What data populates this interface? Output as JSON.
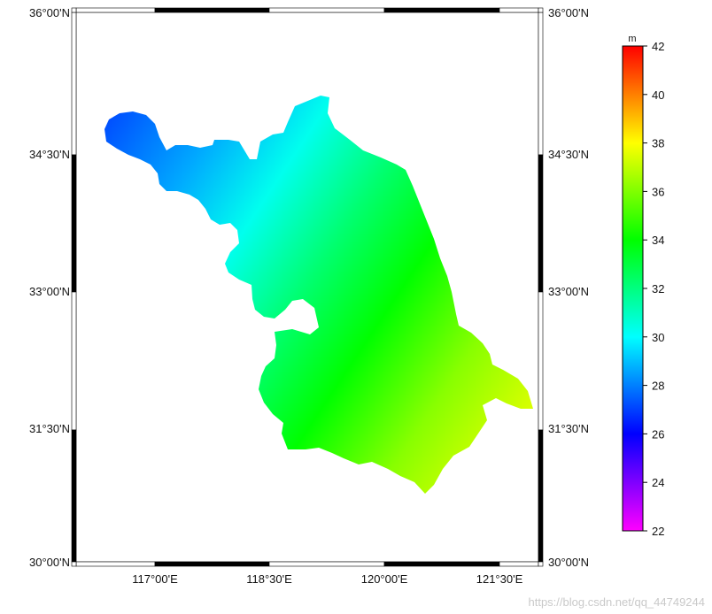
{
  "map": {
    "lat_ticks": [
      "36°00'N",
      "34°30'N",
      "33°00'N",
      "31°30'N",
      "30°00'N"
    ],
    "lon_ticks": [
      "117°00'E",
      "118°30'E",
      "120°00'E",
      "121°30'E"
    ],
    "colors": {
      "frame": "#000000",
      "background": "#ffffff"
    }
  },
  "colorbar": {
    "unit": "m",
    "min": 22,
    "max": 42,
    "tick_values": [
      22,
      24,
      26,
      28,
      30,
      32,
      34,
      36,
      38,
      40,
      42
    ],
    "tick_labels": [
      "22",
      "24",
      "26",
      "28",
      "30",
      "32",
      "34",
      "36",
      "38",
      "40",
      "42"
    ],
    "colormap": "rainbow",
    "colors": [
      "#ff00ff",
      "#0000ff",
      "#00ffff",
      "#00ff00",
      "#ffff00",
      "#ff0000"
    ]
  },
  "watermark": {
    "text": "https://blog.csdn.net/qq_44749244"
  }
}
